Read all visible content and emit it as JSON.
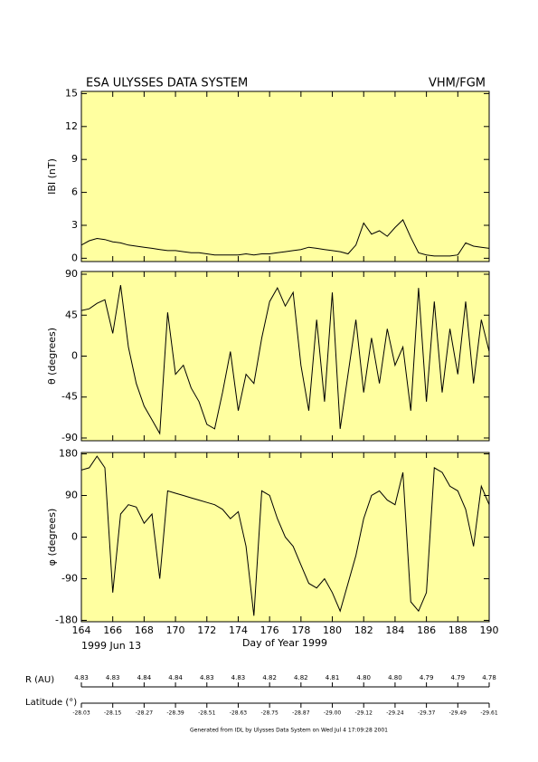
{
  "header": {
    "title": "ESA ULYSSES DATA SYSTEM",
    "instrument": "VHM/FGM"
  },
  "chart_data": [
    {
      "type": "line",
      "ylabel": "IBI (nT)",
      "background": "#ffffa0",
      "color": "#000000",
      "xlim": [
        164,
        190
      ],
      "ylim": [
        -0.3,
        15.2
      ],
      "yticks": [
        0,
        3,
        6,
        9,
        12,
        15
      ],
      "x": [
        164,
        164.5,
        165,
        165.5,
        166,
        166.5,
        167,
        167.5,
        168,
        168.5,
        169,
        169.5,
        170,
        170.5,
        171,
        171.5,
        172,
        172.5,
        173,
        173.5,
        174,
        174.5,
        175,
        175.5,
        176,
        176.5,
        177,
        177.5,
        178,
        178.5,
        179,
        179.5,
        180,
        180.5,
        181,
        181.5,
        182,
        182.5,
        183,
        183.5,
        184,
        184.5,
        185,
        185.5,
        186,
        186.5,
        187,
        187.5,
        188,
        188.5,
        189,
        189.5,
        190
      ],
      "values": [
        1.2,
        1.6,
        1.8,
        1.7,
        1.5,
        1.4,
        1.2,
        1.1,
        1.0,
        0.9,
        0.8,
        0.7,
        0.7,
        0.6,
        0.5,
        0.5,
        0.4,
        0.3,
        0.3,
        0.3,
        0.3,
        0.4,
        0.3,
        0.4,
        0.4,
        0.5,
        0.6,
        0.7,
        0.8,
        1.0,
        0.9,
        0.8,
        0.7,
        0.6,
        0.4,
        1.2,
        3.2,
        2.2,
        2.5,
        2.0,
        2.8,
        3.5,
        1.9,
        0.5,
        0.3,
        0.2,
        0.2,
        0.2,
        0.3,
        1.4,
        1.1,
        1.0,
        0.9
      ]
    },
    {
      "type": "line",
      "ylabel": "θ (degrees)",
      "background": "#ffffa0",
      "color": "#000000",
      "xlim": [
        164,
        190
      ],
      "ylim": [
        -93,
        93
      ],
      "yticks": [
        -90,
        -45,
        0,
        45,
        90
      ],
      "x": [
        164,
        164.5,
        165,
        165.5,
        166,
        166.5,
        167,
        167.5,
        168,
        168.5,
        169,
        169.5,
        170,
        170.5,
        171,
        171.5,
        172,
        172.5,
        173,
        173.5,
        174,
        174.5,
        175,
        175.5,
        176,
        176.5,
        177,
        177.5,
        178,
        178.5,
        179,
        179.5,
        180,
        180.5,
        181,
        181.5,
        182,
        182.5,
        183,
        183.5,
        184,
        184.5,
        185,
        185.5,
        186,
        186.5,
        187,
        187.5,
        188,
        188.5,
        189,
        189.5,
        190
      ],
      "values": [
        50,
        52,
        58,
        62,
        25,
        78,
        10,
        -30,
        -55,
        -70,
        -85,
        48,
        -20,
        -10,
        -35,
        -50,
        -75,
        -80,
        -40,
        5,
        -60,
        -20,
        -30,
        20,
        60,
        75,
        55,
        70,
        -10,
        -60,
        40,
        -50,
        70,
        -80,
        -20,
        40,
        -40,
        20,
        -30,
        30,
        -10,
        10,
        -60,
        75,
        -50,
        60,
        -40,
        30,
        -20,
        60,
        -30,
        40,
        5
      ]
    },
    {
      "type": "line",
      "ylabel": "φ (degrees)",
      "xlabel": "Day of Year 1999",
      "start_label": "1999 Jun 13",
      "background": "#ffffa0",
      "color": "#000000",
      "xlim": [
        164,
        190
      ],
      "xticks": [
        164,
        166,
        168,
        170,
        172,
        174,
        176,
        178,
        180,
        182,
        184,
        186,
        188,
        190
      ],
      "ylim": [
        -183,
        183
      ],
      "yticks": [
        -180,
        -90,
        0,
        90,
        180
      ],
      "x": [
        164,
        164.5,
        165,
        165.5,
        166,
        166.5,
        167,
        167.5,
        168,
        168.5,
        169,
        169.5,
        170,
        170.5,
        171,
        171.5,
        172,
        172.5,
        173,
        173.5,
        174,
        174.5,
        175,
        175.5,
        176,
        176.5,
        177,
        177.5,
        178,
        178.5,
        179,
        179.5,
        180,
        180.5,
        181,
        181.5,
        182,
        182.5,
        183,
        183.5,
        184,
        184.5,
        185,
        185.5,
        186,
        186.5,
        187,
        187.5,
        188,
        188.5,
        189,
        189.5,
        190
      ],
      "values": [
        145,
        150,
        175,
        150,
        -120,
        50,
        70,
        65,
        30,
        50,
        -90,
        100,
        95,
        90,
        85,
        80,
        75,
        70,
        60,
        40,
        55,
        -20,
        -170,
        100,
        90,
        40,
        0,
        -20,
        -60,
        -100,
        -110,
        -90,
        -120,
        -160,
        -100,
        -40,
        40,
        90,
        100,
        80,
        70,
        140,
        -140,
        -160,
        -120,
        150,
        140,
        110,
        100,
        60,
        -20,
        110,
        70
      ]
    }
  ],
  "ephemeris": {
    "r_label": "R (AU)",
    "lat_label": "Latitude (°)",
    "x": [
      164,
      166,
      168,
      170,
      172,
      174,
      176,
      178,
      180,
      182,
      184,
      186,
      188,
      190
    ],
    "r": [
      4.83,
      4.83,
      4.84,
      4.84,
      4.83,
      4.83,
      4.82,
      4.82,
      4.81,
      4.8,
      4.8,
      4.79,
      4.79,
      4.78
    ],
    "r_labels": [
      "4.83",
      "4.83",
      "4.84",
      "4.84",
      "4.83",
      "4.83",
      "4.82",
      "4.82",
      "4.81",
      "4.80",
      "4.80",
      "4.79",
      "4.79",
      "4.78"
    ],
    "lat": [
      -28.03,
      -28.15,
      -28.27,
      -28.39,
      -28.51,
      -28.63,
      -28.75,
      -28.87,
      -29,
      -29.12,
      -29.24,
      -29.37,
      -29.49,
      -29.61
    ],
    "lat_labels": [
      "-28.03",
      "-28.15",
      "-28.27",
      "-28.39",
      "-28.51",
      "-28.63",
      "-28.75",
      "-28.87",
      "-29.00",
      "-29.12",
      "-29.24",
      "-29.37",
      "-29.49",
      "-29.61"
    ]
  },
  "footer": "Generated from IDL by Ulysses Data System on Wed Jul  4 17:09:28 2001"
}
